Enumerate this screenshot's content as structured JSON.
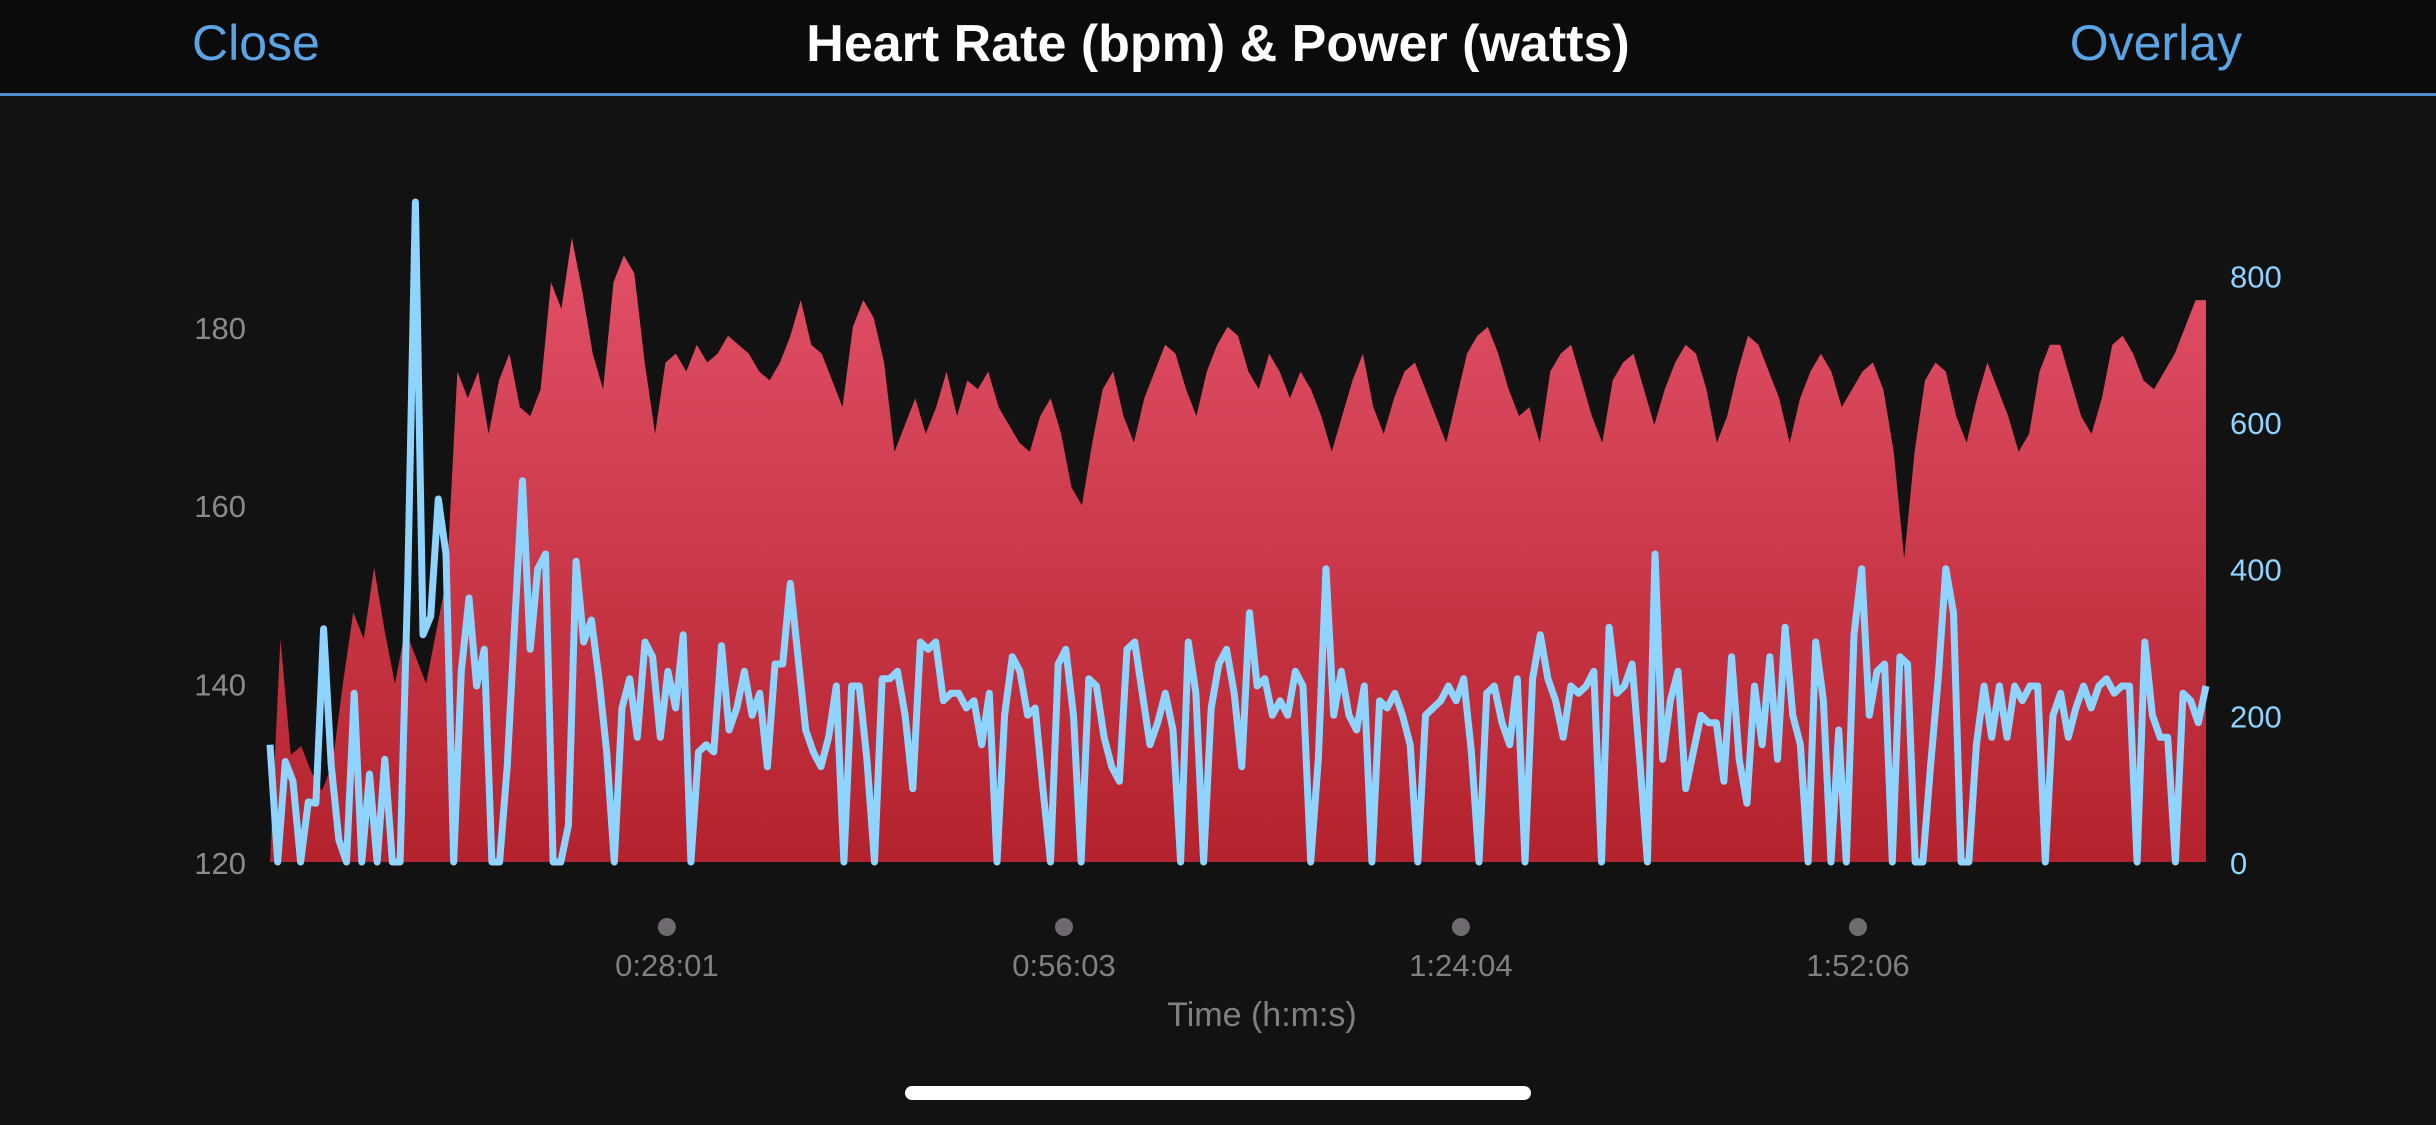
{
  "header": {
    "close_label": "Close",
    "title": "Heart Rate (bpm) & Power (watts)",
    "overlay_label": "Overlay"
  },
  "chart_data": {
    "type": "area",
    "xlabel": "Time (h:m:s)",
    "x_tick_labels": [
      "0:28:01",
      "0:56:03",
      "1:24:04",
      "1:52:06"
    ],
    "x_ticks_sec": [
      1681,
      3363,
      5044,
      6726
    ],
    "xlim_sec": [
      0,
      8200
    ],
    "y_left": {
      "label": "",
      "ticks": [
        120,
        140,
        160,
        180
      ],
      "lim": [
        120,
        194
      ],
      "color": "#8a8a8a"
    },
    "y_right": {
      "label": "",
      "ticks": [
        0,
        200,
        400,
        600,
        800
      ],
      "lim": [
        0,
        900
      ],
      "color": "#8fd3ff"
    },
    "series": [
      {
        "kind": "area",
        "axis": "left",
        "color_top": "#e25168",
        "color_bottom": "#b4222d",
        "values": [
          120,
          145,
          132,
          133,
          130,
          128,
          131,
          140,
          148,
          145,
          153,
          146,
          140,
          146,
          143,
          140,
          146,
          152,
          175,
          172,
          175,
          168,
          174,
          177,
          171,
          170,
          173,
          185,
          182,
          190,
          184,
          177,
          173,
          185,
          188,
          186,
          176,
          168,
          176,
          177,
          175,
          178,
          176,
          177,
          179,
          178,
          177,
          175,
          174,
          176,
          179,
          183,
          178,
          177,
          174,
          171,
          180,
          183,
          181,
          176,
          166,
          169,
          172,
          168,
          171,
          175,
          170,
          174,
          173,
          175,
          171,
          169,
          167,
          166,
          170,
          172,
          168,
          162,
          160,
          167,
          173,
          175,
          170,
          167,
          172,
          175,
          178,
          177,
          173,
          170,
          175,
          178,
          180,
          179,
          175,
          173,
          177,
          175,
          172,
          175,
          173,
          170,
          166,
          170,
          174,
          177,
          171,
          168,
          172,
          175,
          176,
          173,
          170,
          167,
          172,
          177,
          179,
          180,
          177,
          173,
          170,
          171,
          167,
          175,
          177,
          178,
          174,
          170,
          167,
          174,
          176,
          177,
          173,
          169,
          173,
          176,
          178,
          177,
          173,
          167,
          170,
          175,
          179,
          178,
          175,
          172,
          167,
          172,
          175,
          177,
          175,
          171,
          173,
          175,
          176,
          173,
          166,
          154,
          166,
          174,
          176,
          175,
          170,
          167,
          172,
          176,
          173,
          170,
          166,
          168,
          175,
          178,
          178,
          174,
          170,
          168,
          172,
          178,
          179,
          177,
          174,
          173,
          175,
          177,
          180,
          183,
          183
        ]
      },
      {
        "kind": "line",
        "axis": "right",
        "color": "#8fd3ff",
        "values": [
          160,
          0,
          137,
          110,
          0,
          82,
          80,
          318,
          132,
          30,
          0,
          230,
          0,
          120,
          0,
          140,
          0,
          0,
          380,
          900,
          310,
          335,
          495,
          420,
          0,
          260,
          360,
          240,
          290,
          0,
          0,
          130,
          330,
          520,
          290,
          400,
          420,
          0,
          0,
          50,
          410,
          300,
          330,
          250,
          150,
          0,
          210,
          250,
          170,
          300,
          280,
          170,
          260,
          210,
          310,
          0,
          150,
          160,
          150,
          295,
          180,
          210,
          260,
          200,
          230,
          130,
          270,
          270,
          380,
          280,
          180,
          150,
          130,
          170,
          240,
          0,
          240,
          240,
          140,
          0,
          250,
          250,
          260,
          200,
          100,
          300,
          290,
          300,
          220,
          230,
          230,
          210,
          220,
          160,
          230,
          0,
          200,
          280,
          260,
          200,
          210,
          100,
          0,
          270,
          290,
          200,
          0,
          250,
          240,
          170,
          130,
          110,
          290,
          300,
          230,
          160,
          190,
          230,
          180,
          0,
          300,
          230,
          0,
          210,
          270,
          290,
          230,
          130,
          340,
          240,
          250,
          200,
          220,
          200,
          260,
          240,
          0,
          140,
          400,
          200,
          260,
          200,
          180,
          240,
          0,
          220,
          210,
          230,
          200,
          160,
          0,
          200,
          210,
          220,
          240,
          220,
          250,
          150,
          0,
          230,
          240,
          190,
          160,
          250,
          0,
          250,
          310,
          250,
          220,
          170,
          240,
          230,
          240,
          260,
          0,
          320,
          230,
          240,
          270,
          140,
          0,
          420,
          140,
          220,
          260,
          100,
          150,
          200,
          190,
          190,
          110,
          280,
          140,
          80,
          240,
          160,
          280,
          140,
          320,
          200,
          160,
          0,
          300,
          220,
          0,
          180,
          0,
          310,
          400,
          200,
          260,
          270,
          0,
          280,
          270,
          0,
          0,
          130,
          250,
          400,
          340,
          0,
          0,
          160,
          240,
          170,
          240,
          170,
          240,
          220,
          240,
          240,
          0,
          200,
          230,
          170,
          210,
          240,
          210,
          240,
          250,
          230,
          240,
          240,
          0,
          300,
          200,
          170,
          170,
          0,
          230,
          220,
          190,
          240
        ]
      }
    ],
    "legend": "none",
    "grid": false
  }
}
